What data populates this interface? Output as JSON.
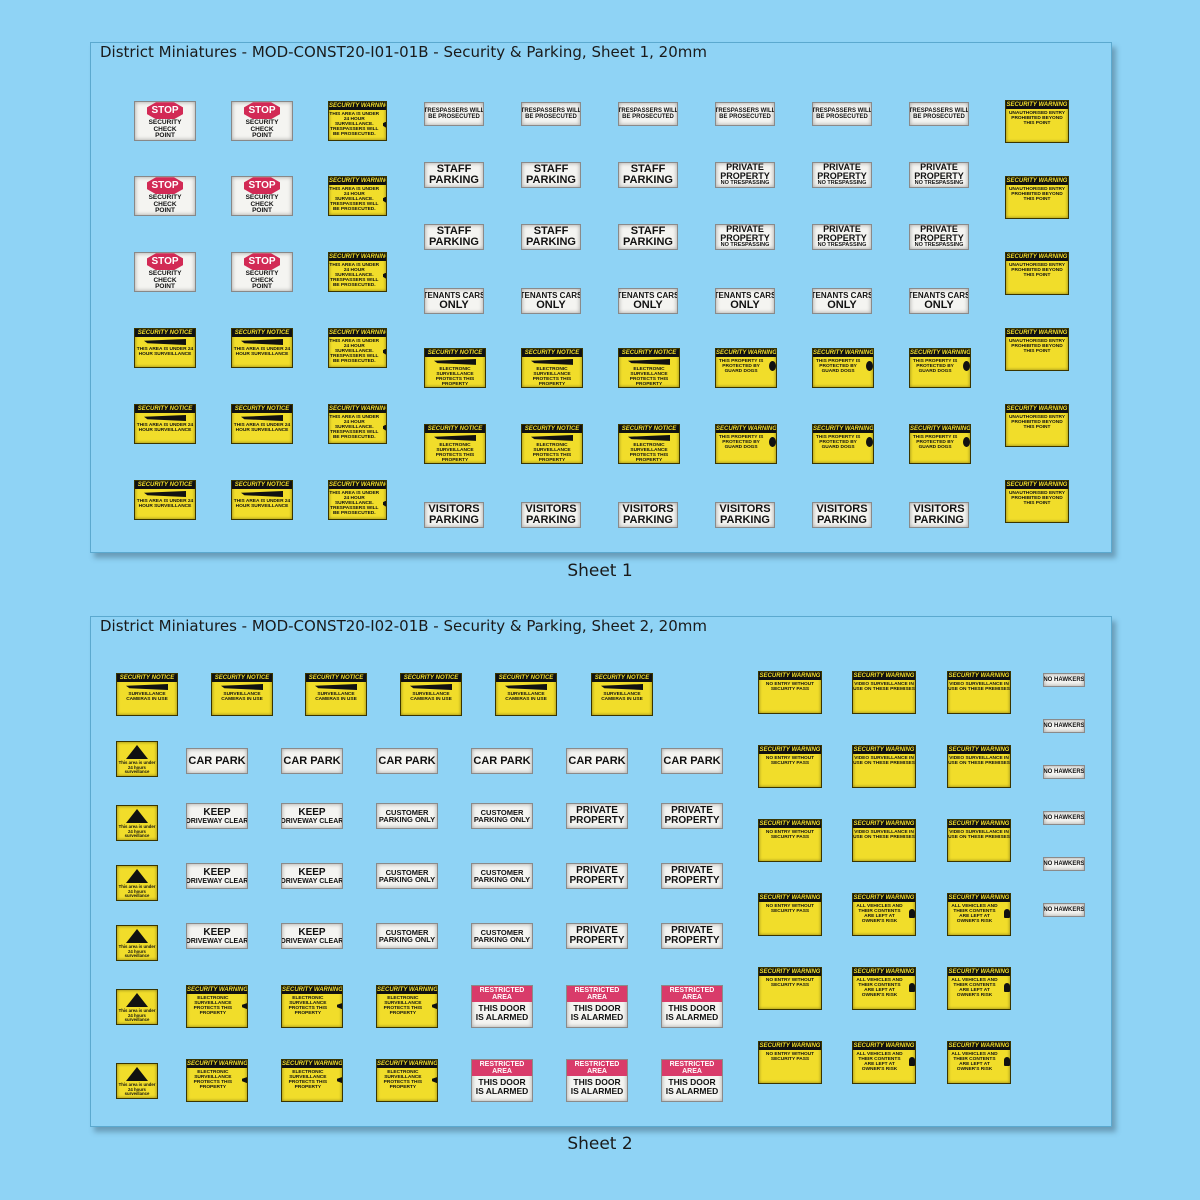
{
  "sheet1": {
    "title": "District Miniatures - MOD-CONST20-I01-01B - Security & Parking, Sheet 1, 20mm",
    "caption": "Sheet 1",
    "stop": {
      "word": "STOP",
      "lines": [
        "SECURITY",
        "CHECK",
        "POINT"
      ]
    },
    "warn_cctv": {
      "header": "SECURITY WARNING",
      "body": "THIS AREA IS UNDER 24 HOUR SURVEILLANCE. TRESPASSERS WILL BE PROSECUTED."
    },
    "notice_area": {
      "header": "SECURITY NOTICE",
      "body": "THIS AREA IS UNDER 24 HOUR SURVEILLANCE"
    },
    "trespassers": {
      "l1": "TRESPASSERS WILL",
      "l2": "BE PROSECUTED"
    },
    "staff": {
      "l1": "STAFF",
      "l2": "PARKING"
    },
    "private_np": {
      "l1": "PRIVATE",
      "l2": "PROPERTY",
      "l3": "NO TRESPASSING"
    },
    "tenants": {
      "l1": "TENANTS CARS",
      "l2": "ONLY"
    },
    "notice_elec": {
      "header": "SECURITY NOTICE",
      "body": "ELECTRONIC SURVEILLANCE PROTECTS THIS PROPERTY"
    },
    "guard": {
      "header": "SECURITY WARNING",
      "body": "THIS PROPERTY IS PROTECTED BY GUARD DOGS"
    },
    "visitors": {
      "l1": "VISITORS",
      "l2": "PARKING"
    },
    "unauth": {
      "header": "SECURITY WARNING",
      "body": "UNAUTHORISED ENTRY PROHIBITED BEYOND THIS POINT"
    }
  },
  "sheet2": {
    "title": "District Miniatures - MOD-CONST20-I02-01B - Security & Parking, Sheet 2, 20mm",
    "caption": "Sheet 2",
    "notice_cams": {
      "header": "SECURITY NOTICE",
      "body": "SURVEILLANCE CAMERAS IN USE"
    },
    "tri": {
      "body": "This area is under 24 hours surveillance"
    },
    "carpark": {
      "l1": "CAR PARK"
    },
    "keep": {
      "l1": "KEEP",
      "l2": "DRIVEWAY CLEAR"
    },
    "customer": {
      "l1": "CUSTOMER",
      "l2": "PARKING ONLY"
    },
    "private": {
      "l1": "PRIVATE",
      "l2": "PROPERTY"
    },
    "warn_elec": {
      "header": "SECURITY WARNING",
      "body": "ELECTRONIC SURVEILLANCE PROTECTS THIS PROPERTY"
    },
    "restricted": {
      "top": "RESTRICTED AREA",
      "l1": "THIS DOOR",
      "l2": "IS ALARMED"
    },
    "noentry": {
      "header": "SECURITY WARNING",
      "body": "NO ENTRY WITHOUT SECURITY PASS"
    },
    "video": {
      "header": "SECURITY WARNING",
      "body": "VIDEO SURVEILLANCE IN USE ON THESE PREMISES"
    },
    "vehicles": {
      "header": "SECURITY WARNING",
      "body": "ALL VEHICLES AND THEIR CONTENTS ARE LEFT AT OWNER'S RISK"
    },
    "hawkers": {
      "l1": "NO HAWKERS"
    }
  },
  "colors": {
    "background": "#8fd3f5",
    "sign_yellow": "#f1dd2a",
    "stop_red": "#d22a55",
    "restricted_pink": "#d93b6a"
  }
}
